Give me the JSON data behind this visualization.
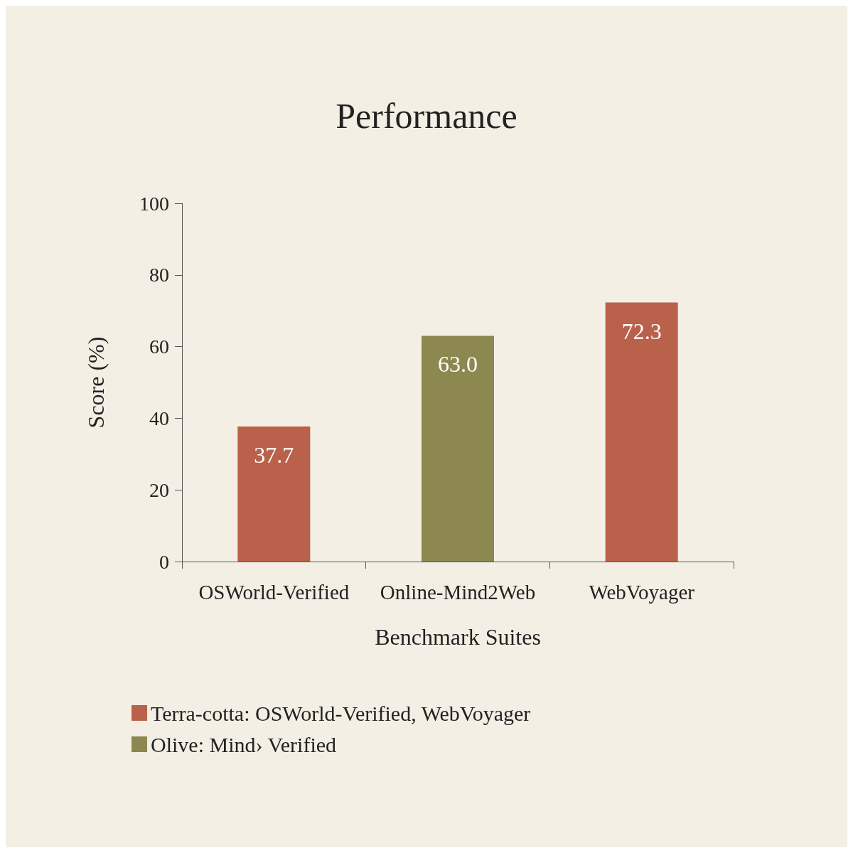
{
  "chart_data": {
    "type": "bar",
    "title": "Performance",
    "xlabel": "Benchmark Suites",
    "ylabel": "Score (%)",
    "categories": [
      "OSWorld-Verified",
      "Online-Mind2Web",
      "WebVoyager"
    ],
    "series": [
      {
        "name": "Terra-cotta: OSWorld-Verified, WebVoyager",
        "color": "#b9614a",
        "values": [
          37.7,
          null,
          72.3
        ],
        "value_labels": [
          "37.7",
          null,
          "72.3"
        ]
      },
      {
        "name": "Olive: Mind› Verified",
        "color": "#8c8850",
        "values": [
          null,
          63.0,
          null
        ],
        "value_labels": [
          null,
          "63.0",
          null
        ]
      }
    ],
    "ylim": [
      0,
      100
    ],
    "yticks": [
      0,
      20,
      40,
      60,
      80,
      100
    ],
    "grid": false,
    "legend": "bottom left"
  }
}
